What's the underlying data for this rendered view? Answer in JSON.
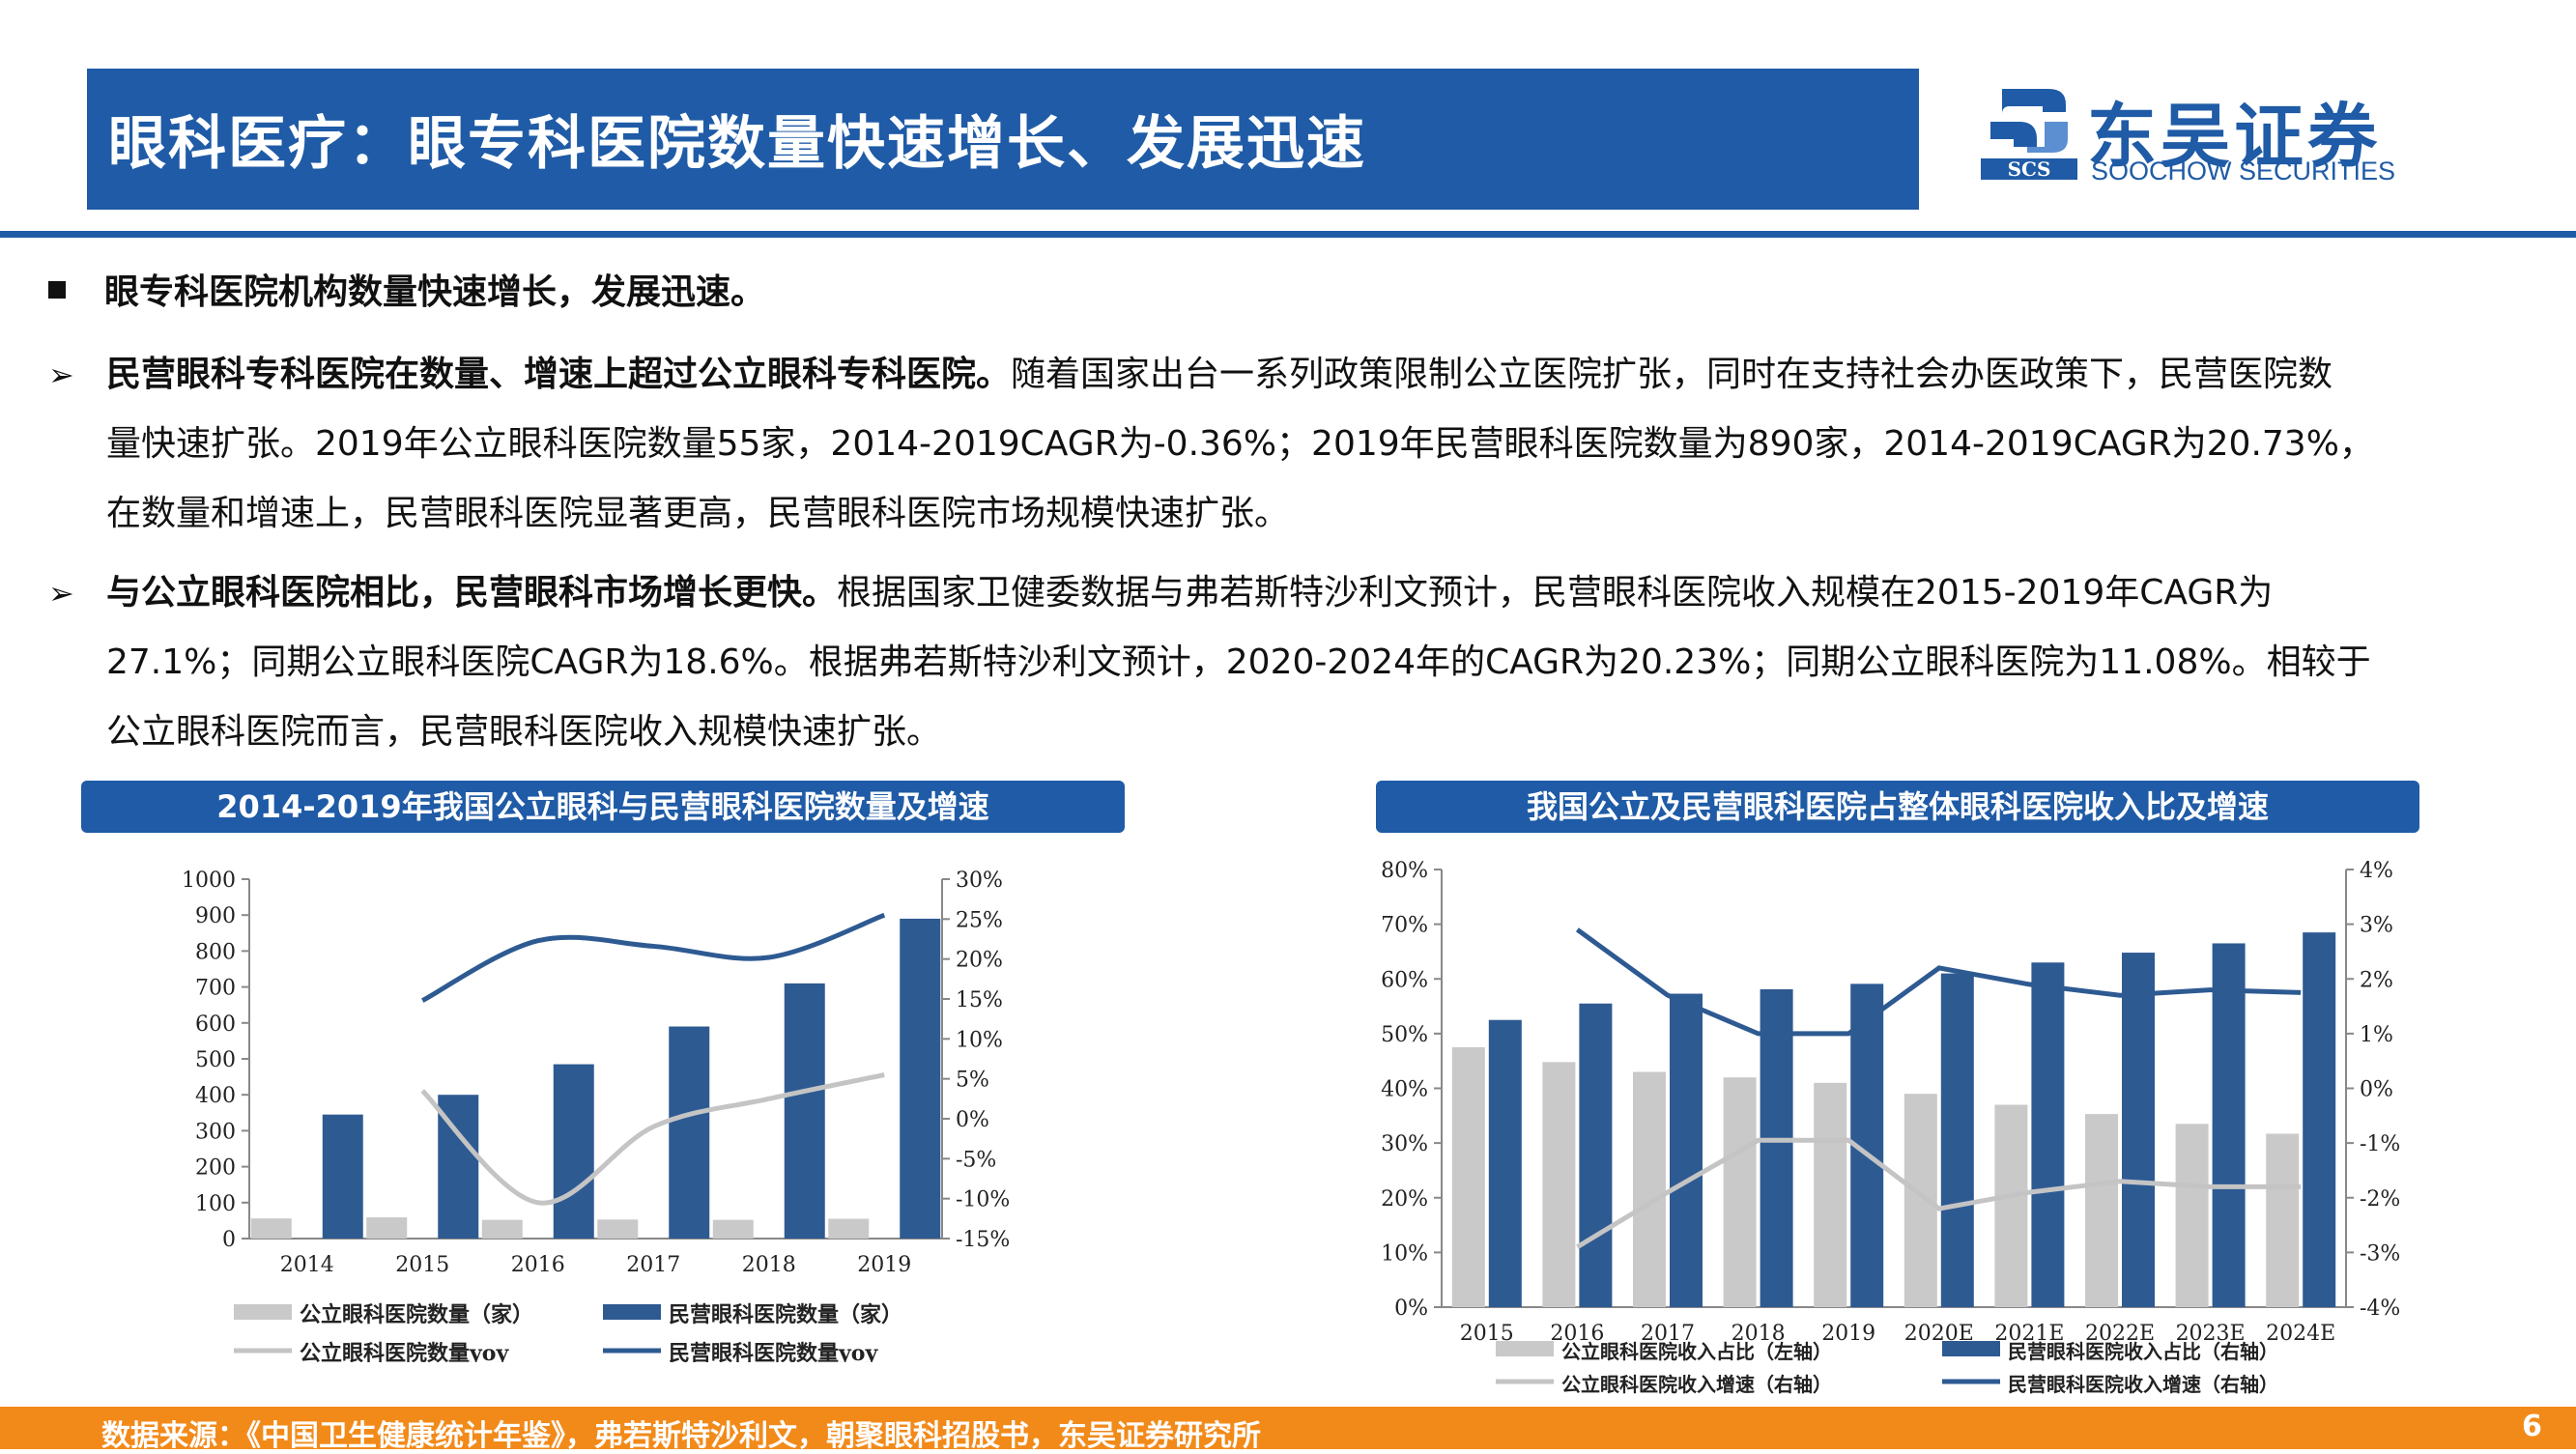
{
  "header": {
    "title": "眼科医疗：眼专科医院数量快速增长、发展迅速",
    "logo_cn": "东吴证券",
    "logo_en": "SOOCHOW SECURITIES",
    "logo_mark_text": "SCS"
  },
  "main_bullet": "眼专科医院机构数量快速增长，发展迅速。",
  "paragraphs": [
    {
      "bold": "民营眼科专科医院在数量、增速上超过公立眼科专科医院。",
      "line1": "随着国家出台一系列政策限制公立医院扩张，同时在支持社会办医政策下，民营医院数",
      "line2": "量快速扩张。2019年公立眼科医院数量55家，2014-2019CAGR为-0.36%；2019年民营眼科医院数量为890家，2014-2019CAGR为20.73%，",
      "line3": "在数量和增速上，民营眼科医院显著更高，民营眼科医院市场规模快速扩张。"
    },
    {
      "bold": "与公立眼科医院相比，民营眼科市场增长更快。",
      "line1": "根据国家卫健委数据与弗若斯特沙利文预计，民营眼科医院收入规模在2015-2019年CAGR为",
      "line2": "27.1%；同期公立眼科医院CAGR为18.6%。根据弗若斯特沙利文预计，2020-2024年的CAGR为20.23%；同期公立眼科医院为11.08%。相较于",
      "line3": "公立眼科医院而言，民营眼科医院收入规模快速扩张。"
    }
  ],
  "chart_data": [
    {
      "type": "bar",
      "title": "2014-2019年我国公立眼科与民营眼科医院数量及增速",
      "categories": [
        "2014",
        "2015",
        "2016",
        "2017",
        "2018",
        "2019"
      ],
      "y_left_ticks": [
        "1000",
        "900",
        "800",
        "700",
        "600",
        "500",
        "400",
        "300",
        "200",
        "100",
        "0"
      ],
      "y_right_ticks": [
        "30%",
        "25%",
        "20%",
        "15%",
        "10%",
        "5%",
        "0%",
        "-5%",
        "-10%",
        "-15%"
      ],
      "ylim_left": [
        0,
        1000
      ],
      "ylim_right": [
        -15,
        30
      ],
      "series": [
        {
          "name": "公立眼科医院数量（家）",
          "kind": "bar",
          "axis": "left",
          "color": "#c9c9c9",
          "values": [
            56,
            59,
            52,
            53,
            52,
            55
          ]
        },
        {
          "name": "民营眼科医院数量（家）",
          "kind": "bar",
          "axis": "left",
          "color": "#2e5a92",
          "values": [
            345,
            400,
            485,
            590,
            710,
            890
          ]
        },
        {
          "name": "公立眼科医院数量yoy",
          "kind": "line",
          "axis": "right",
          "color": "#c4c4c4",
          "values": [
            null,
            3.5,
            -10.5,
            -1,
            2.5,
            5.5
          ]
        },
        {
          "name": "民营眼科医院数量yoy",
          "kind": "line",
          "axis": "right",
          "color": "#2e5a92",
          "values": [
            null,
            14.8,
            22.3,
            21.6,
            20.2,
            25.5
          ]
        }
      ]
    },
    {
      "type": "bar",
      "title": "我国公立及民营眼科医院占整体眼科医院收入比及增速",
      "categories": [
        "2015",
        "2016",
        "2017",
        "2018",
        "2019",
        "2020E",
        "2021E",
        "2022E",
        "2023E",
        "2024E"
      ],
      "y_left_ticks": [
        "80%",
        "70%",
        "60%",
        "50%",
        "40%",
        "30%",
        "20%",
        "10%",
        "0%"
      ],
      "y_right_ticks": [
        "4%",
        "3%",
        "2%",
        "1%",
        "0%",
        "-1%",
        "-2%",
        "-3%",
        "-4%"
      ],
      "ylim_left": [
        0,
        80
      ],
      "ylim_right": [
        -4,
        4
      ],
      "series": [
        {
          "name": "公立眼科医院收入占比（左轴）",
          "kind": "bar",
          "axis": "left",
          "color": "#c9c9c9",
          "values": [
            47.5,
            44.8,
            43,
            42,
            41,
            39,
            37,
            35.3,
            33.5,
            31.7
          ]
        },
        {
          "name": "民营眼科医院收入占比（右轴）",
          "kind": "bar",
          "axis": "left",
          "color": "#2e5a92",
          "values": [
            52.5,
            55.5,
            57.3,
            58.1,
            59.1,
            61,
            63,
            64.8,
            66.5,
            68.5
          ]
        },
        {
          "name": "公立眼科医院收入增速（右轴）",
          "kind": "line",
          "axis": "right",
          "color": "#c4c4c4",
          "values": [
            null,
            -2.9,
            -1.9,
            -0.95,
            -0.95,
            -2.2,
            -1.9,
            -1.7,
            -1.8,
            -1.8
          ]
        },
        {
          "name": "民营眼科医院收入增速（右轴）",
          "kind": "line",
          "axis": "right",
          "color": "#2e5a92",
          "values": [
            null,
            2.9,
            1.7,
            1.0,
            1.0,
            2.2,
            1.9,
            1.7,
            1.8,
            1.75
          ]
        }
      ]
    }
  ],
  "footer": {
    "source": "数据来源：《中国卫生健康统计年鉴》，弗若斯特沙利文，朝聚眼科招股书，东吴证券研究所",
    "page": "6"
  }
}
